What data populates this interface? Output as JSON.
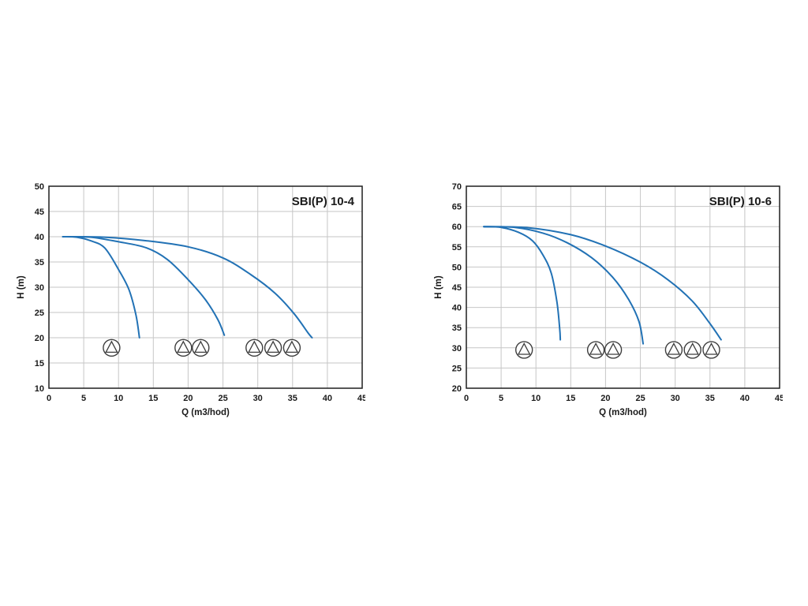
{
  "page": {
    "background": "#ffffff"
  },
  "chart_data": [
    {
      "type": "line",
      "title": "SBI(P) 10-4",
      "xlabel": "Q (m3/hod)",
      "ylabel": "H (m)",
      "xlim": [
        0,
        45
      ],
      "ylim": [
        10,
        50
      ],
      "xticks": [
        0,
        5,
        10,
        15,
        20,
        25,
        30,
        35,
        40,
        45
      ],
      "yticks": [
        10,
        15,
        20,
        25,
        30,
        35,
        40,
        45,
        50
      ],
      "grid": true,
      "grid_color": "#c6c6c6",
      "line_color": "#2272b5",
      "legend_position": "none",
      "series": [
        {
          "name": "one-pump-curve",
          "points": [
            [
              2,
              40
            ],
            [
              4,
              39.9
            ],
            [
              6,
              39.2
            ],
            [
              8,
              37.8
            ],
            [
              10,
              33.5
            ],
            [
              11.5,
              29.5
            ],
            [
              12.5,
              24.5
            ],
            [
              13,
              20
            ]
          ]
        },
        {
          "name": "two-pumps-curve",
          "points": [
            [
              2,
              40
            ],
            [
              6,
              39.9
            ],
            [
              10,
              39
            ],
            [
              14,
              37.8
            ],
            [
              17,
              35.5
            ],
            [
              20,
              31.5
            ],
            [
              22.5,
              27.5
            ],
            [
              24.3,
              23.5
            ],
            [
              25.2,
              20.5
            ]
          ]
        },
        {
          "name": "three-pumps-curve",
          "points": [
            [
              2,
              40
            ],
            [
              8,
              39.9
            ],
            [
              14,
              39.2
            ],
            [
              20,
              38
            ],
            [
              25,
              35.8
            ],
            [
              29,
              32.5
            ],
            [
              32.5,
              28.8
            ],
            [
              35.2,
              24.8
            ],
            [
              37.2,
              21
            ],
            [
              37.8,
              20
            ]
          ]
        }
      ],
      "pump_groups": [
        {
          "y": 18,
          "xs": [
            9
          ]
        },
        {
          "y": 18,
          "xs": [
            19.3,
            21.8
          ]
        },
        {
          "y": 18,
          "xs": [
            29.5,
            32.2,
            34.9
          ]
        }
      ]
    },
    {
      "type": "line",
      "title": "SBI(P) 10-6",
      "xlabel": "Q (m3/hod)",
      "ylabel": "H (m)",
      "xlim": [
        0,
        45
      ],
      "ylim": [
        20,
        70
      ],
      "xticks": [
        0,
        5,
        10,
        15,
        20,
        25,
        30,
        35,
        40,
        45
      ],
      "yticks": [
        20,
        25,
        30,
        35,
        40,
        45,
        50,
        55,
        60,
        65,
        70
      ],
      "grid": true,
      "grid_color": "#c6c6c6",
      "line_color": "#2272b5",
      "legend_position": "none",
      "series": [
        {
          "name": "one-pump-curve",
          "points": [
            [
              2.5,
              60
            ],
            [
              5,
              59.8
            ],
            [
              7.5,
              58.6
            ],
            [
              9.5,
              56.5
            ],
            [
              11,
              53
            ],
            [
              12.2,
              48.5
            ],
            [
              13,
              41.5
            ],
            [
              13.4,
              35
            ],
            [
              13.5,
              32
            ]
          ]
        },
        {
          "name": "two-pumps-curve",
          "points": [
            [
              2.5,
              60
            ],
            [
              7,
              59.8
            ],
            [
              11,
              58.4
            ],
            [
              14.5,
              56
            ],
            [
              18,
              52.3
            ],
            [
              21,
              47.5
            ],
            [
              23.3,
              42
            ],
            [
              24.8,
              36.5
            ],
            [
              25.4,
              31
            ]
          ]
        },
        {
          "name": "three-pumps-curve",
          "points": [
            [
              2.5,
              60
            ],
            [
              9,
              59.7
            ],
            [
              15,
              58
            ],
            [
              20,
              55.2
            ],
            [
              25,
              51.2
            ],
            [
              29,
              46.8
            ],
            [
              32.5,
              41.5
            ],
            [
              35,
              36
            ],
            [
              36.6,
              32
            ]
          ]
        }
      ],
      "pump_groups": [
        {
          "y": 29.5,
          "xs": [
            8.3
          ]
        },
        {
          "y": 29.5,
          "xs": [
            18.6,
            21.1
          ]
        },
        {
          "y": 29.5,
          "xs": [
            29.8,
            32.5,
            35.2
          ]
        }
      ]
    }
  ]
}
